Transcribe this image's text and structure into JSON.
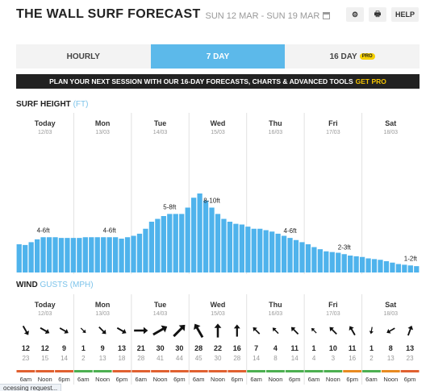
{
  "header": {
    "title": "THE WALL SURF FORECAST",
    "date_range": "SUN 12 MAR - SUN 19 MAR",
    "buttons": [
      {
        "name": "settings-button",
        "icon": "gear-icon",
        "label": "⚙"
      },
      {
        "name": "print-button",
        "icon": "print-icon",
        "label": "🖶"
      },
      {
        "name": "help-button",
        "icon": "",
        "label": "HELP"
      }
    ]
  },
  "tabs": [
    {
      "label": "HOURLY",
      "active": false
    },
    {
      "label": "7 DAY",
      "active": true
    },
    {
      "label": "16 DAY",
      "active": false,
      "badge": "PRO"
    }
  ],
  "promo": {
    "text": "PLAN YOUR NEXT SESSION WITH OUR 16-DAY FORECASTS, CHARTS & ADVANCED TOOLS",
    "cta": "GET PRO"
  },
  "surf_section": {
    "title": "SURF HEIGHT",
    "unit": "(FT)"
  },
  "wind_section": {
    "title": "WIND",
    "gusts": "GUSTS",
    "unit": "(MPH)"
  },
  "days": [
    {
      "name": "Today",
      "date": "12/03"
    },
    {
      "name": "Mon",
      "date": "13/03"
    },
    {
      "name": "Tue",
      "date": "14/03"
    },
    {
      "name": "Wed",
      "date": "15/03"
    },
    {
      "name": "Thu",
      "date": "16/03"
    },
    {
      "name": "Fri",
      "date": "17/03"
    },
    {
      "name": "Sat",
      "date": "18/03"
    }
  ],
  "chart_data": {
    "type": "bar",
    "ylabel": "SURF HEIGHT (FT)",
    "ylim": [
      0,
      12
    ],
    "values": [
      4.0,
      3.9,
      4.3,
      4.7,
      5.0,
      5.0,
      5.0,
      4.9,
      4.9,
      4.9,
      4.9,
      5.0,
      5.0,
      5.0,
      5.0,
      5.0,
      5.0,
      4.8,
      5.0,
      5.2,
      5.5,
      6.2,
      7.2,
      7.6,
      8.0,
      8.3,
      8.3,
      8.3,
      9.2,
      10.6,
      11.2,
      10.2,
      9.2,
      8.3,
      7.6,
      7.2,
      6.9,
      6.8,
      6.5,
      6.2,
      6.2,
      6.0,
      5.8,
      5.5,
      5.2,
      4.9,
      4.6,
      4.3,
      4.0,
      3.6,
      3.3,
      3.0,
      2.9,
      2.8,
      2.6,
      2.4,
      2.3,
      2.2,
      2.0,
      1.9,
      1.8,
      1.6,
      1.4,
      1.2,
      1.1,
      1.0,
      0.9
    ],
    "range_labels": [
      {
        "text": "4-6ft",
        "index": 4
      },
      {
        "text": "4-6ft",
        "index": 15
      },
      {
        "text": "5-8ft",
        "index": 25
      },
      {
        "text": "8-10ft",
        "index": 32
      },
      {
        "text": "4-6ft",
        "index": 45
      },
      {
        "text": "2-3ft",
        "index": 54
      },
      {
        "text": "1-2ft",
        "index": 65
      }
    ]
  },
  "wind": [
    {
      "dir": 330,
      "speed": "12",
      "gust": "23",
      "speed_size": 0.5,
      "time": "6am",
      "band": "#e06030"
    },
    {
      "dir": 300,
      "speed": "12",
      "gust": "15",
      "speed_size": 0.5,
      "time": "Noon",
      "band": "#e06030"
    },
    {
      "dir": 300,
      "speed": "9",
      "gust": "14",
      "speed_size": 0.45,
      "time": "6pm",
      "band": "#e06030"
    },
    {
      "dir": 315,
      "speed": "1",
      "gust": "2",
      "speed_size": 0.2,
      "time": "6am",
      "band": "#4caf50"
    },
    {
      "dir": 315,
      "speed": "9",
      "gust": "13",
      "speed_size": 0.45,
      "time": "Noon",
      "band": "#4caf50"
    },
    {
      "dir": 300,
      "speed": "13",
      "gust": "18",
      "speed_size": 0.5,
      "time": "6pm",
      "band": "#e06030"
    },
    {
      "dir": 270,
      "speed": "21",
      "gust": "28",
      "speed_size": 0.8,
      "time": "6am",
      "band": "#e06030"
    },
    {
      "dir": 240,
      "speed": "30",
      "gust": "41",
      "speed_size": 1.0,
      "time": "Noon",
      "band": "#e06030"
    },
    {
      "dir": 225,
      "speed": "30",
      "gust": "44",
      "speed_size": 1.0,
      "time": "6pm",
      "band": "#e06030"
    },
    {
      "dir": 150,
      "speed": "28",
      "gust": "45",
      "speed_size": 0.95,
      "time": "6am",
      "band": "#e06030"
    },
    {
      "dir": 180,
      "speed": "22",
      "gust": "30",
      "speed_size": 0.8,
      "time": "Noon",
      "band": "#e06030"
    },
    {
      "dir": 180,
      "speed": "16",
      "gust": "28",
      "speed_size": 0.65,
      "time": "6pm",
      "band": "#e06030"
    },
    {
      "dir": 135,
      "speed": "7",
      "gust": "14",
      "speed_size": 0.4,
      "time": "6am",
      "band": "#4caf50"
    },
    {
      "dir": 135,
      "speed": "4",
      "gust": "8",
      "speed_size": 0.3,
      "time": "Noon",
      "band": "#4caf50"
    },
    {
      "dir": 135,
      "speed": "11",
      "gust": "14",
      "speed_size": 0.45,
      "time": "6pm",
      "band": "#4caf50"
    },
    {
      "dir": 135,
      "speed": "1",
      "gust": "4",
      "speed_size": 0.2,
      "time": "6am",
      "band": "#4caf50"
    },
    {
      "dir": 135,
      "speed": "10",
      "gust": "3",
      "speed_size": 0.45,
      "time": "Noon",
      "band": "#4caf50"
    },
    {
      "dir": 150,
      "speed": "11",
      "gust": "16",
      "speed_size": 0.5,
      "time": "6pm",
      "band": "#e88a20"
    },
    {
      "dir": 10,
      "speed": "1",
      "gust": "2",
      "speed_size": 0.2,
      "time": "6am",
      "band": "#4caf50"
    },
    {
      "dir": 60,
      "speed": "8",
      "gust": "13",
      "speed_size": 0.4,
      "time": "Noon",
      "band": "#e88a20"
    },
    {
      "dir": 200,
      "speed": "13",
      "gust": "23",
      "speed_size": 0.5,
      "time": "6pm",
      "band": "#e06030"
    }
  ],
  "statusbar": "ocessing request..."
}
